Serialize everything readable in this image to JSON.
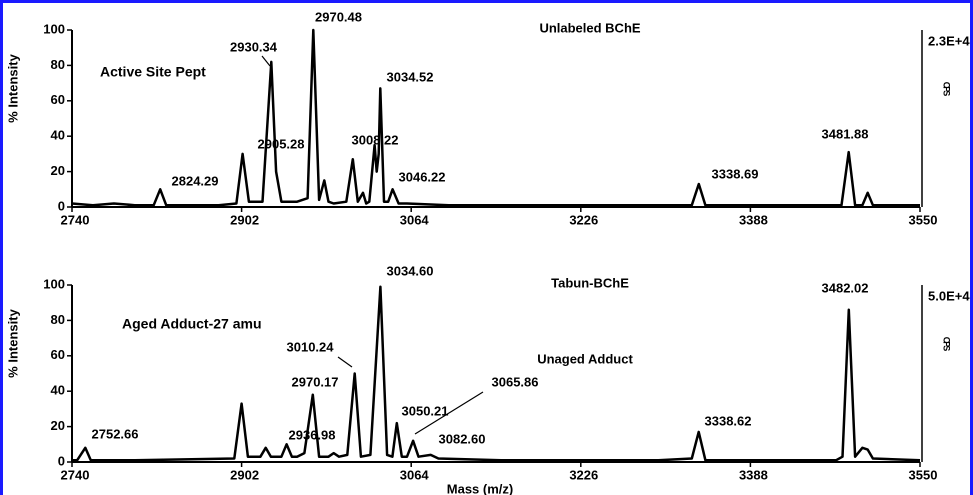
{
  "chart_data": [
    {
      "type": "line",
      "title": "Unlabeled BChE",
      "ylabel": "% Intensity",
      "y2label": "CPS",
      "y2scale": "2.3E+4",
      "color": "#000000",
      "xlim": [
        2740,
        3550
      ],
      "ylim": [
        0,
        100
      ],
      "xticks": [
        2740,
        2902,
        3064,
        3226,
        3388,
        3550
      ],
      "yticks": [
        0,
        20,
        40,
        60,
        80,
        100
      ],
      "x": [
        2740,
        2760,
        2780,
        2800,
        2818,
        2824.29,
        2830,
        2880,
        2897,
        2903,
        2909,
        2922,
        2930.34,
        2935,
        2940,
        2955,
        2965,
        2970.48,
        2976,
        2981,
        2985,
        2990,
        3002,
        3008.22,
        3013,
        3018,
        3021,
        3024,
        3029,
        3031,
        3033,
        3034.52,
        3038,
        3042,
        3046.22,
        3052,
        3060,
        3100,
        3200,
        3300,
        3332,
        3338.69,
        3345,
        3400,
        3475,
        3481.88,
        3488,
        3495,
        3500,
        3505,
        3550
      ],
      "values": [
        2,
        1,
        2,
        1,
        1,
        10,
        1,
        1,
        2,
        30,
        3,
        3,
        82,
        20,
        3,
        3,
        5,
        100,
        4,
        15,
        3,
        2,
        3,
        27,
        3,
        8,
        2,
        3,
        35,
        20,
        30,
        67,
        3,
        3,
        10,
        2,
        2,
        1,
        1,
        1,
        1,
        13,
        1,
        1,
        1,
        31,
        1,
        1,
        8,
        1,
        1
      ],
      "annotations": [
        "Active Site Pept",
        "2930.34",
        "2970.48",
        "3034.52",
        "2905.28",
        "3008.22",
        "3046.22",
        "2824.29",
        "3338.69",
        "3481.88"
      ]
    },
    {
      "type": "line",
      "title": "Tabun-BChE",
      "ylabel": "% Intensity",
      "xlabel": "Mass (m/z)",
      "y2label": "CPS",
      "y2scale": "5.0E+4",
      "color": "#000000",
      "xlim": [
        2740,
        3550
      ],
      "ylim": [
        0,
        100
      ],
      "xticks": [
        2740,
        2902,
        3064,
        3226,
        3388,
        3550
      ],
      "yticks": [
        0,
        20,
        40,
        60,
        80,
        100
      ],
      "x": [
        2740,
        2745,
        2752.66,
        2758,
        2800,
        2895,
        2902,
        2908,
        2920,
        2925,
        2930,
        2940,
        2945,
        2950,
        2955,
        2962,
        2970,
        2976,
        2985,
        2990,
        2995,
        3003,
        3010,
        3016,
        3025,
        3034.6,
        3041,
        3046,
        3050.21,
        3055,
        3060,
        3065.86,
        3071,
        3082.6,
        3090,
        3150,
        3300,
        3332,
        3338.62,
        3345,
        3470,
        3476,
        3482.02,
        3488,
        3495,
        3500,
        3505,
        3550
      ],
      "values": [
        1,
        1,
        8,
        1,
        1,
        2,
        33,
        3,
        3,
        8,
        3,
        3,
        10,
        3,
        3,
        5,
        38,
        3,
        3,
        5,
        3,
        4,
        50,
        3,
        4,
        99,
        4,
        3,
        22,
        3,
        3,
        12,
        3,
        4,
        2,
        1,
        1,
        2,
        17,
        1,
        1,
        3,
        86,
        3,
        8,
        7,
        2,
        1
      ],
      "annotations": [
        "Aged Adduct-27 amu",
        "3034.60",
        "3482.02",
        "3010.24",
        "Unaged Adduct",
        "3065.86",
        "2970.17",
        "3050.21",
        "2936.98",
        "3082.60",
        "2752.66",
        "3338.62"
      ]
    }
  ]
}
